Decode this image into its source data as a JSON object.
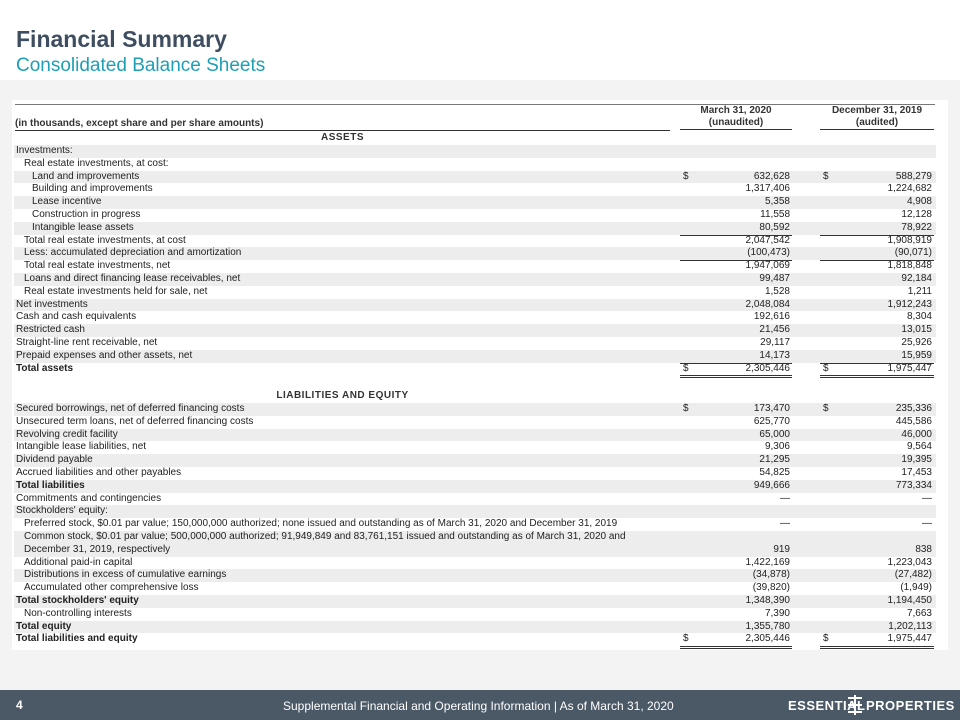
{
  "header": {
    "title": "Financial Summary",
    "subtitle": "Consolidated Balance Sheets"
  },
  "table": {
    "caption": "(in thousands, except share and per share amounts)",
    "columns": [
      [
        "March 31, 2020",
        "(unaudited)"
      ],
      [
        "December 31, 2019",
        "(audited)"
      ]
    ],
    "sections": [
      {
        "title": "ASSETS",
        "rows": [
          {
            "label": "Investments:"
          },
          {
            "label": "Real estate investments, at cost:"
          },
          {
            "label": "Land and improvements",
            "values": [
              "632,628",
              "588,279"
            ],
            "symbols": [
              "$",
              "$"
            ]
          },
          {
            "label": "Building and improvements",
            "values": [
              "1,317,406",
              "1,224,682"
            ]
          },
          {
            "label": "Lease incentive",
            "values": [
              "5,358",
              "4,908"
            ]
          },
          {
            "label": "Construction in progress",
            "values": [
              "11,558",
              "12,128"
            ]
          },
          {
            "label": "Intangible lease assets",
            "values": [
              "80,592",
              "78,922"
            ]
          },
          {
            "label": "Total real estate investments, at cost",
            "values": [
              "2,047,542",
              "1,908,919"
            ]
          },
          {
            "label": "Less: accumulated depreciation and amortization",
            "values": [
              "(100,473)",
              "(90,071)"
            ]
          },
          {
            "label": "Total real estate investments, net",
            "values": [
              "1,947,069",
              "1,818,848"
            ]
          },
          {
            "label": "Loans and direct financing lease receivables, net",
            "values": [
              "99,487",
              "92,184"
            ]
          },
          {
            "label": "Real estate investments held for sale, net",
            "values": [
              "1,528",
              "1,211"
            ]
          },
          {
            "label": "Net investments",
            "values": [
              "2,048,084",
              "1,912,243"
            ]
          },
          {
            "label": "Cash and cash equivalents",
            "values": [
              "192,616",
              "8,304"
            ]
          },
          {
            "label": "Restricted cash",
            "values": [
              "21,456",
              "13,015"
            ]
          },
          {
            "label": "Straight-line rent receivable, net",
            "values": [
              "29,117",
              "25,926"
            ]
          },
          {
            "label": "Prepaid expenses and other assets, net",
            "values": [
              "14,173",
              "15,959"
            ]
          },
          {
            "label": "Total assets",
            "values": [
              "2,305,446",
              "1,975,447"
            ],
            "symbols": [
              "$",
              "$"
            ]
          }
        ]
      },
      {
        "title": "LIABILITIES AND EQUITY",
        "rows": [
          {
            "label": "Secured borrowings, net of deferred financing costs",
            "values": [
              "173,470",
              "235,336"
            ],
            "symbols": [
              "$",
              "$"
            ]
          },
          {
            "label": "Unsecured term loans, net of deferred financing costs",
            "values": [
              "625,770",
              "445,586"
            ]
          },
          {
            "label": "Revolving credit facility",
            "values": [
              "65,000",
              "46,000"
            ]
          },
          {
            "label": "Intangible lease liabilities, net",
            "values": [
              "9,306",
              "9,564"
            ]
          },
          {
            "label": "Dividend payable",
            "values": [
              "21,295",
              "19,395"
            ]
          },
          {
            "label": "Accrued liabilities and other payables",
            "values": [
              "54,825",
              "17,453"
            ]
          },
          {
            "label": "Total liabilities",
            "values": [
              "949,666",
              "773,334"
            ]
          },
          {
            "label": "Commitments and contingencies",
            "values": [
              "—",
              "—"
            ]
          },
          {
            "label": "Stockholders' equity:"
          },
          {
            "label": "Preferred stock, $0.01 par value; 150,000,000 authorized; none issued and outstanding as of March 31, 2020 and December 31, 2019",
            "values": [
              "—",
              "—"
            ]
          },
          {
            "label": "Common stock, $0.01 par value; 500,000,000 authorized; 91,949,849 and 83,761,151 issued and outstanding as of March 31, 2020 and December 31, 2019, respectively",
            "values": [
              "919",
              "838"
            ]
          },
          {
            "label": "Additional paid-in capital",
            "values": [
              "1,422,169",
              "1,223,043"
            ]
          },
          {
            "label": "Distributions in excess of cumulative earnings",
            "values": [
              "(34,878)",
              "(27,482)"
            ]
          },
          {
            "label": "Accumulated other comprehensive loss",
            "values": [
              "(39,820)",
              "(1,949)"
            ]
          },
          {
            "label": "Total stockholders' equity",
            "values": [
              "1,348,390",
              "1,194,450"
            ]
          },
          {
            "label": "Non-controlling interests",
            "values": [
              "7,390",
              "7,663"
            ]
          },
          {
            "label": "Total equity",
            "values": [
              "1,355,780",
              "1,202,113"
            ]
          },
          {
            "label": "Total liabilities and equity",
            "values": [
              "2,305,446",
              "1,975,447"
            ],
            "symbols": [
              "$",
              "$"
            ]
          }
        ]
      }
    ]
  },
  "footer": {
    "page": "4",
    "text": "Supplemental Financial and Operating Information | As of March 31, 2020",
    "logo": [
      "ESSENTIAL",
      "PROPERTIES"
    ]
  }
}
